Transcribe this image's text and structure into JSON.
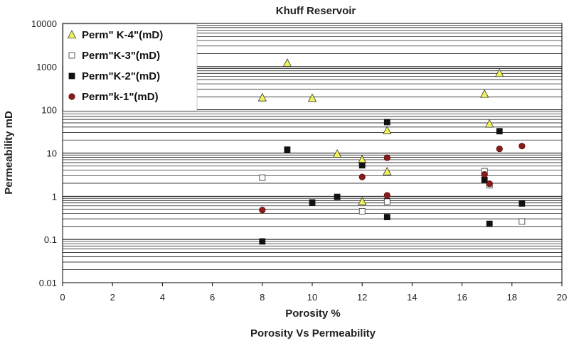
{
  "chart_data": {
    "type": "scatter",
    "title": "Khuff  Reservoir",
    "xlabel": "Porosity %",
    "subtitle": "Porosity Vs Permeability",
    "ylabel": "Permeability mD",
    "xlim": [
      0,
      20
    ],
    "ylim": [
      0.01,
      10000
    ],
    "y_scale": "log",
    "x_ticks": [
      0,
      2,
      4,
      6,
      8,
      10,
      12,
      14,
      16,
      18,
      20
    ],
    "y_ticks": [
      0.01,
      0.1,
      1,
      10,
      100,
      1000,
      10000
    ],
    "y_tick_labels": [
      "0.01",
      "0.1",
      "1",
      "10",
      "100",
      "1000",
      "10000"
    ],
    "grid": "horizontal-minor",
    "legend_position": "top-left",
    "series": [
      {
        "name": "Perm\" K-4\"(mD)",
        "marker": "triangle",
        "color": "#f2f25a",
        "edge": "#333333",
        "points": [
          [
            8,
            190
          ],
          [
            9,
            1200
          ],
          [
            10,
            185
          ],
          [
            11,
            9.5
          ],
          [
            12,
            7
          ],
          [
            12,
            0.75
          ],
          [
            13,
            33
          ],
          [
            13,
            3.7
          ],
          [
            16.9,
            230
          ],
          [
            17.1,
            47
          ],
          [
            17.5,
            700
          ]
        ]
      },
      {
        "name": "Perm\"K-3\"(mD)",
        "marker": "square-open",
        "color": "#ffffff",
        "edge": "#333333",
        "points": [
          [
            8,
            2.7
          ],
          [
            12,
            0.45
          ],
          [
            13,
            0.75
          ],
          [
            16.9,
            3.8
          ],
          [
            17.1,
            1.8
          ],
          [
            18.4,
            0.26
          ]
        ]
      },
      {
        "name": "Perm\"K-2\"(mD)",
        "marker": "square",
        "color": "#111111",
        "edge": "#111111",
        "points": [
          [
            8,
            0.09
          ],
          [
            9,
            12
          ],
          [
            10,
            0.72
          ],
          [
            11,
            0.97
          ],
          [
            12,
            5.2
          ],
          [
            13,
            52
          ],
          [
            13,
            0.33
          ],
          [
            16.9,
            2.4
          ],
          [
            17.1,
            0.23
          ],
          [
            17.5,
            32
          ],
          [
            18.4,
            0.68
          ]
        ]
      },
      {
        "name": "Perm\"k-1\"(mD)",
        "marker": "circle",
        "color": "#8b1a1a",
        "edge": "#5a0f0f",
        "points": [
          [
            8,
            0.48
          ],
          [
            12,
            2.8
          ],
          [
            13,
            7.8
          ],
          [
            13,
            1.05
          ],
          [
            16.9,
            3.2
          ],
          [
            17.1,
            1.95
          ],
          [
            17.5,
            12.5
          ],
          [
            18.4,
            14.5
          ]
        ]
      }
    ]
  }
}
